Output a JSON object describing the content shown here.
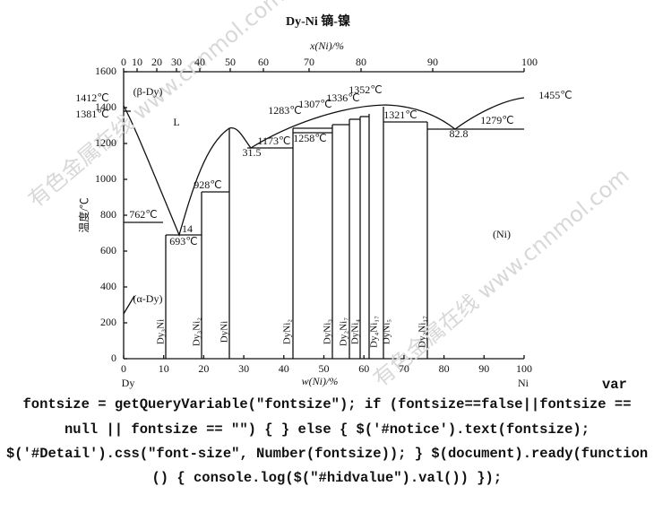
{
  "diagram": {
    "title": "Dy-Ni  镝-镍",
    "top_axis": {
      "label": "x(Ni)/%",
      "ticks": [
        "0",
        "10",
        "20",
        "30",
        "40",
        "50",
        "60",
        "70",
        "80",
        "90",
        "100"
      ]
    },
    "bottom_axis": {
      "label": "w(Ni)/%",
      "ticks": [
        "0",
        "10",
        "20",
        "30",
        "40",
        "50",
        "60",
        "70",
        "80",
        "90",
        "100"
      ]
    },
    "left_axis": {
      "label": "温度/℃",
      "ticks": [
        "0",
        "200",
        "400",
        "600",
        "800",
        "1000",
        "1200",
        "1400",
        "1600"
      ]
    },
    "end_labels": [
      "Dy",
      "Ni"
    ],
    "annotations": [
      "1412℃",
      "1381℃",
      "(β-Dy)",
      "L",
      "762℃",
      "14",
      "693℃",
      "928℃",
      "31.5",
      "1173℃",
      "1258℃",
      "1283℃",
      "1307℃",
      "1336℃",
      "1352℃",
      "1321℃",
      "82.8",
      "1279℃",
      "1455℃",
      "(Ni)",
      "(α-Dy)"
    ],
    "phases": [
      "Dy₃Ni",
      "Dy₃Ni₂",
      "DyNi",
      "DyNi₂",
      "DyNi₃",
      "Dy₂Ni₇",
      "DyNi₄",
      "Dy₄Ni₁₇",
      "DyNi₅",
      "Dy₂Ni₁₇"
    ],
    "watermarks": [
      "有色金属在线 www.cnnmol.com",
      "有色金属在线 www.cnnmol.com"
    ]
  },
  "code_lines": [
    "var",
    "fontsize = getQueryVariable(\"fontsize\"); if (fontsize==false||fontsize ==",
    "null || fontsize == \"\") { } else { $('#notice').text(fontsize);",
    "$('#Detail').css(\"font-size\", Number(fontsize)); } $(document).ready(function",
    "() { console.log($(\"#hidvalue\").val()) });"
  ]
}
